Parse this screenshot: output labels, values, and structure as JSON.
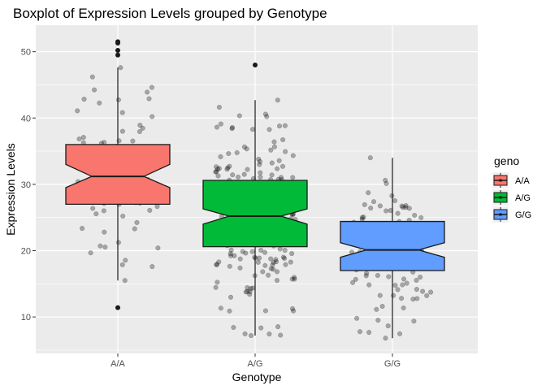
{
  "chart_data": {
    "type": "boxplot",
    "title": "Boxplot of Expression Levels grouped by Genotype",
    "xlabel": "Genotype",
    "ylabel": "Expression Levels",
    "ylim": [
      4.5,
      54
    ],
    "yticks": [
      10,
      20,
      30,
      40,
      50
    ],
    "grid": true,
    "notched": true,
    "jitter_points": true,
    "legend": {
      "title": "geno",
      "placement": "right"
    },
    "categories": [
      "A/A",
      "A/G",
      "G/G"
    ],
    "groups": [
      {
        "name": "A/A",
        "color": "#F8766D",
        "min": 15.5,
        "q1": 27.0,
        "median": 31.2,
        "q3": 36.0,
        "max": 47.6,
        "notch": [
          29.5,
          33.0
        ],
        "outliers": [
          11.4,
          49.5,
          50.2,
          51.3,
          51.5
        ],
        "n": 80
      },
      {
        "name": "A/G",
        "color": "#00BA38",
        "min": 7.2,
        "q1": 20.6,
        "median": 25.2,
        "q3": 30.6,
        "max": 42.7,
        "notch": [
          24.0,
          26.3
        ],
        "outliers": [
          48.0
        ],
        "n": 230
      },
      {
        "name": "G/G",
        "color": "#619CFF",
        "min": 6.8,
        "q1": 17.0,
        "median": 20.1,
        "q3": 24.4,
        "max": 34.0,
        "notch": [
          19.0,
          21.2
        ],
        "outliers": [],
        "n": 120
      }
    ]
  }
}
